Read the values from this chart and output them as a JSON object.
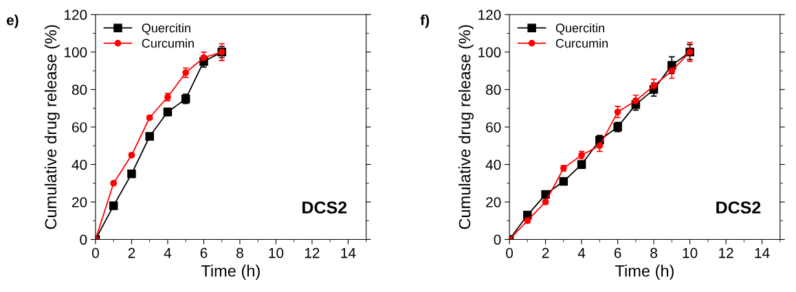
{
  "chart_data": [
    {
      "type": "line",
      "title": "e)",
      "xlabel": "Time (h)",
      "ylabel": "Cumulative drug release (%)",
      "annotations": [
        "DCS2"
      ],
      "x": [
        0,
        1,
        2,
        3,
        4,
        5,
        6,
        7
      ],
      "series": [
        {
          "name": "Quercitin",
          "color": "#000000",
          "marker": "square",
          "values": [
            0,
            18,
            35,
            55,
            68,
            75,
            95,
            100
          ],
          "errors": [
            null,
            1,
            1,
            1.5,
            2,
            2.5,
            3,
            3
          ]
        },
        {
          "name": "Curcumin",
          "color": "#ff0000",
          "marker": "circle",
          "values": [
            0,
            30,
            45,
            65,
            76,
            89,
            97,
            100
          ],
          "errors": [
            null,
            1,
            1,
            1,
            2,
            2.5,
            3,
            4.5
          ]
        }
      ],
      "xlim": [
        0,
        15
      ],
      "xticks": [
        0,
        2,
        4,
        6,
        8,
        10,
        12,
        14
      ],
      "ylim": [
        0,
        120
      ],
      "yticks": [
        0,
        20,
        40,
        60,
        80,
        100,
        120
      ],
      "legend": "top left",
      "grid": false,
      "line_style": "solid"
    },
    {
      "type": "line",
      "title": "f)",
      "xlabel": "Time (h)",
      "ylabel": "Cumulative drug release (%)",
      "annotations": [
        "DCS2"
      ],
      "x": [
        0,
        1,
        2,
        3,
        4,
        5,
        6,
        7,
        8,
        9,
        10
      ],
      "series": [
        {
          "name": "Quercitin",
          "color": "#000000",
          "marker": "square",
          "values": [
            0,
            13,
            24,
            31,
            40,
            53,
            60,
            72,
            80,
            93,
            100
          ],
          "errors": [
            null,
            1,
            1,
            1.5,
            2,
            2.5,
            2.5,
            3,
            3.5,
            4.5,
            4
          ]
        },
        {
          "name": "Curcumin",
          "color": "#ff0000",
          "marker": "circle",
          "values": [
            0,
            10,
            20,
            38,
            45,
            50,
            68,
            74,
            82,
            90,
            100
          ],
          "errors": [
            null,
            1,
            1,
            1.5,
            2,
            3,
            3,
            3,
            3.5,
            4,
            5
          ]
        }
      ],
      "xlim": [
        0,
        15
      ],
      "xticks": [
        0,
        2,
        4,
        6,
        8,
        10,
        12,
        14
      ],
      "ylim": [
        0,
        120
      ],
      "yticks": [
        0,
        20,
        40,
        60,
        80,
        100,
        120
      ],
      "legend": "top left",
      "grid": false,
      "line_style": "solid"
    }
  ]
}
